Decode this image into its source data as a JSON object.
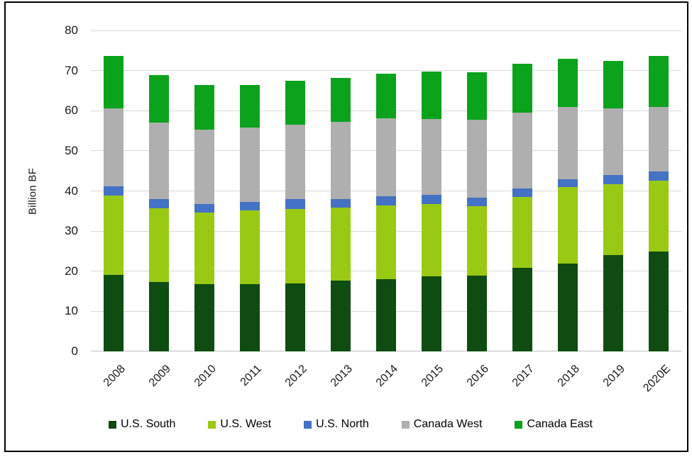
{
  "chart_data": {
    "type": "bar",
    "stacked": true,
    "title": "",
    "xlabel": "",
    "ylabel": "Billion BF",
    "ylim": [
      0,
      80
    ],
    "yticks": [
      0,
      10,
      20,
      30,
      40,
      50,
      60,
      70,
      80
    ],
    "grid": true,
    "legend_position": "bottom",
    "categories": [
      "2008",
      "2009",
      "2010",
      "2011",
      "2012",
      "2013",
      "2014",
      "2015",
      "2016",
      "2017",
      "2018",
      "2019",
      "2020E"
    ],
    "series": [
      {
        "name": "U.S. South",
        "color": "#0E4C12",
        "values": [
          19.0,
          17.3,
          16.8,
          16.8,
          17.0,
          17.6,
          18.0,
          18.7,
          18.9,
          20.8,
          21.9,
          24.0,
          24.9
        ]
      },
      {
        "name": "U.S. West",
        "color": "#9AC914",
        "values": [
          19.8,
          18.4,
          17.9,
          18.3,
          18.5,
          18.2,
          18.3,
          18.0,
          17.3,
          17.7,
          19.0,
          17.7,
          17.7
        ]
      },
      {
        "name": "U.S. North",
        "color": "#4472C4",
        "values": [
          2.4,
          2.3,
          2.1,
          2.2,
          2.4,
          2.1,
          2.4,
          2.3,
          2.1,
          2.1,
          2.1,
          2.2,
          2.3
        ]
      },
      {
        "name": "Canada West",
        "color": "#AFAFAF",
        "values": [
          19.3,
          19.1,
          18.4,
          18.5,
          18.6,
          19.4,
          19.4,
          19.0,
          19.5,
          19.0,
          17.9,
          16.6,
          16.1
        ]
      },
      {
        "name": "Canada East",
        "color": "#0BA21C",
        "values": [
          13.1,
          11.8,
          11.2,
          10.6,
          11.0,
          10.9,
          11.1,
          11.8,
          11.7,
          12.1,
          12.0,
          11.9,
          12.7
        ]
      }
    ],
    "totals": [
      73.6,
      68.9,
      66.4,
      66.4,
      67.5,
      68.2,
      69.2,
      69.8,
      69.5,
      71.7,
      72.9,
      72.4,
      73.7
    ],
    "style": {
      "gridline_color": "#D9D9D9",
      "axis_line_color": "#BFBFBF",
      "frame_border_color": "#000000"
    }
  }
}
